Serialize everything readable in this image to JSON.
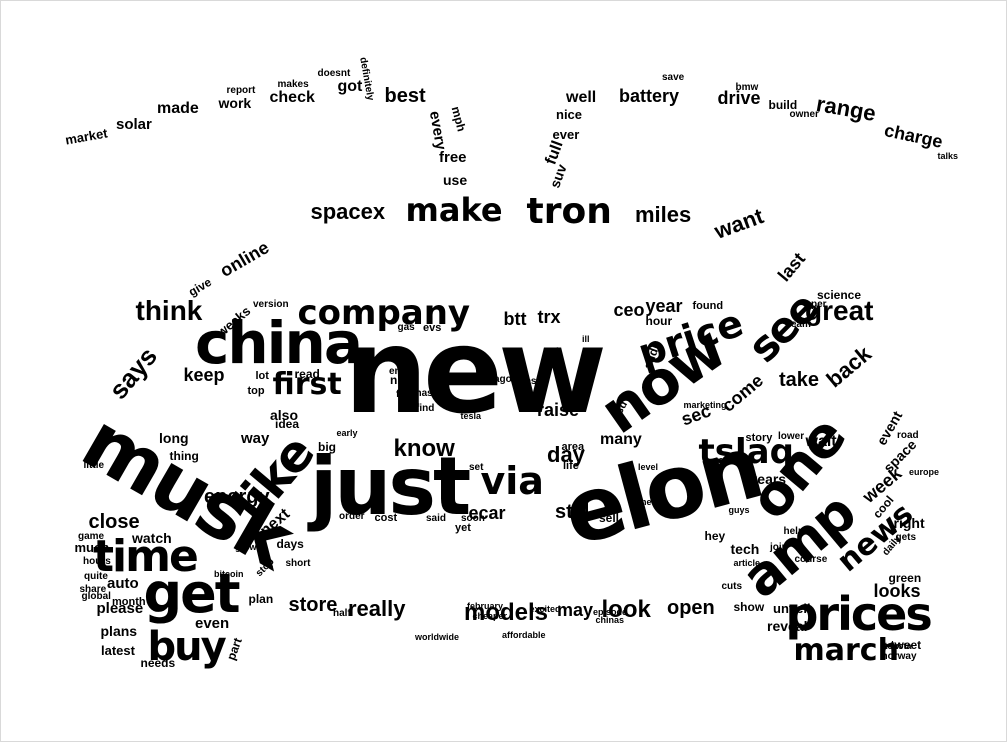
{
  "wordcloud": {
    "text_color": "#000000",
    "background": "#ffffff",
    "shape": "car",
    "words": [
      "new",
      "elon",
      "just",
      "musk",
      "like",
      "china",
      "now",
      "one",
      "amp",
      "get",
      "prices",
      "time",
      "via",
      "tslaq",
      "tron",
      "buy",
      "make",
      "see",
      "price",
      "company",
      "news",
      "first",
      "march",
      "great",
      "spacex",
      "think",
      "know",
      "says",
      "miles",
      "models",
      "really",
      "day",
      "want",
      "energy",
      "look",
      "store",
      "open",
      "close",
      "keep",
      "back",
      "take",
      "looks",
      "week",
      "still",
      "ceo",
      "ecar",
      "trx",
      "year",
      "btt",
      "sec",
      "come",
      "raise",
      "last",
      "online",
      "range",
      "charge",
      "battery",
      "drive",
      "best",
      "check",
      "work",
      "got",
      "made",
      "solar",
      "market",
      "well",
      "full",
      "every",
      "free",
      "use",
      "suv",
      "ever",
      "nice",
      "mph",
      "many",
      "long",
      "way",
      "also",
      "next",
      "auto",
      "please",
      "even",
      "plans",
      "latest",
      "needs",
      "tech",
      "years",
      "wait",
      "right",
      "event",
      "cool",
      "space",
      "tweet",
      "green",
      "reveal",
      "unveil",
      "show",
      "may",
      "plan",
      "part",
      "days",
      "watch",
      "much",
      "thing",
      "big",
      "order",
      "cost",
      "said",
      "yet",
      "soon",
      "sell",
      "hey",
      "story",
      "lower",
      "hour",
      "audi",
      "found",
      "idea",
      "stop",
      "top",
      "lot",
      "read",
      "nio",
      "end",
      "fast",
      "nasa",
      "find",
      "gas",
      "evs",
      "test",
      "ago",
      "say",
      "fsd",
      "area",
      "life",
      "set",
      "live",
      "give",
      "weeks",
      "version",
      "science",
      "build",
      "owner",
      "bmw",
      "save",
      "makes",
      "report",
      "doesnt",
      "definitely",
      "short",
      "month",
      "bitcoin",
      "hours",
      "global",
      "quite",
      "share",
      "game",
      "little",
      "grow",
      "early",
      "marketing",
      "cash",
      "guys",
      "done",
      "level",
      "fun",
      "ill",
      "per",
      "team",
      "cuts",
      "europe",
      "road",
      "gets",
      "norway",
      "toyota",
      "course",
      "help",
      "join",
      "article",
      "daily",
      "half",
      "excited",
      "episode",
      "chinas",
      "affordable",
      "cheaper",
      "february",
      "worldwide",
      "tesla",
      "talks"
    ]
  }
}
